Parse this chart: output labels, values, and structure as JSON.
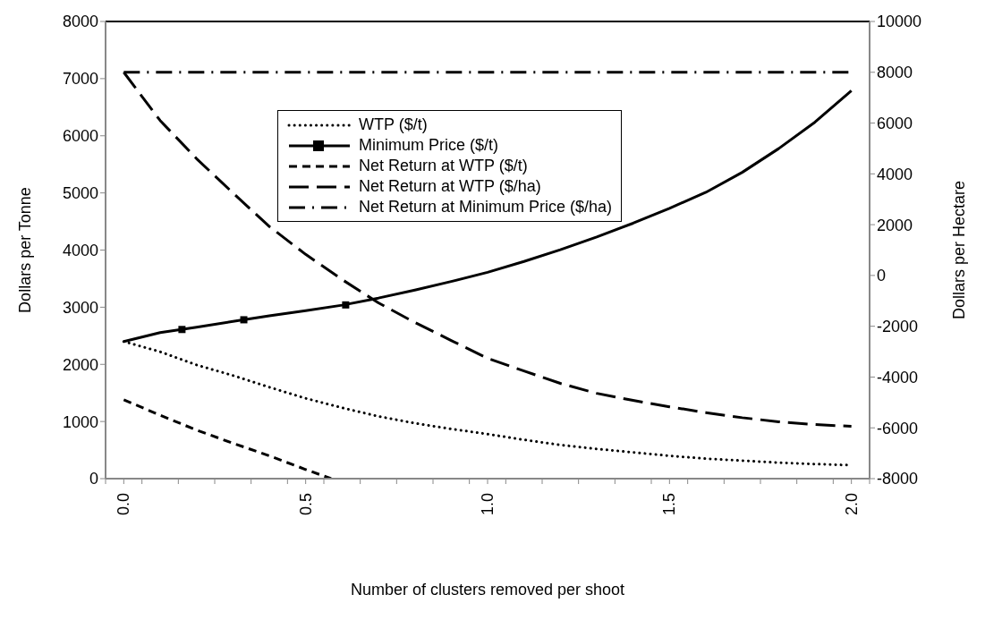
{
  "chart_data": {
    "type": "line",
    "xlabel": "Number of clusters removed per shoot",
    "ylabel": "Dollars per Tonne",
    "y2label": "Dollars per Hectare",
    "x": [
      0,
      0.1,
      0.2,
      0.3,
      0.4,
      0.5,
      0.6,
      0.7,
      0.8,
      0.9,
      1.0,
      1.1,
      1.2,
      1.3,
      1.4,
      1.5,
      1.6,
      1.7,
      1.8,
      1.9,
      2.0
    ],
    "xlim": [
      -0.05,
      2.05
    ],
    "xticks": [
      {
        "value": -0.05,
        "label": null
      },
      {
        "value": 0,
        "label": "0.0"
      },
      {
        "value": 0.05,
        "label": null
      },
      {
        "value": 0.15,
        "label": null
      },
      {
        "value": 0.25,
        "label": null
      },
      {
        "value": 0.35,
        "label": null
      },
      {
        "value": 0.45,
        "label": null
      },
      {
        "value": 0.5,
        "label": "0.5"
      },
      {
        "value": 0.55,
        "label": null
      },
      {
        "value": 0.65,
        "label": null
      },
      {
        "value": 0.75,
        "label": null
      },
      {
        "value": 0.85,
        "label": null
      },
      {
        "value": 0.95,
        "label": null
      },
      {
        "value": 1,
        "label": "1.0"
      },
      {
        "value": 1.05,
        "label": null
      },
      {
        "value": 1.15,
        "label": null
      },
      {
        "value": 1.25,
        "label": null
      },
      {
        "value": 1.35,
        "label": null
      },
      {
        "value": 1.45,
        "label": null
      },
      {
        "value": 1.5,
        "label": "1.5"
      },
      {
        "value": 1.55,
        "label": null
      },
      {
        "value": 1.65,
        "label": null
      },
      {
        "value": 1.75,
        "label": null
      },
      {
        "value": 1.85,
        "label": null
      },
      {
        "value": 1.95,
        "label": null
      },
      {
        "value": 2,
        "label": "2.0"
      },
      {
        "value": 2.05,
        "label": null
      }
    ],
    "ylim": [
      0,
      8000
    ],
    "yticks": [
      0,
      1000,
      2000,
      3000,
      4000,
      5000,
      6000,
      7000,
      8000
    ],
    "y2lim": [
      -8000,
      10000
    ],
    "y2ticks": [
      -8000,
      -6000,
      -4000,
      -2000,
      0,
      2000,
      4000,
      6000,
      8000,
      10000
    ],
    "grid": false,
    "legend": "top",
    "series": [
      {
        "name": "WTP ($/t)",
        "color": "#000000",
        "line_style": "dotted",
        "marker": "none",
        "values": [
          2400,
          2220,
          1990,
          1805,
          1600,
          1405,
          1240,
          1090,
          970,
          870,
          780,
          680,
          590,
          520,
          460,
          400,
          350,
          315,
          280,
          255,
          235
        ]
      },
      {
        "name": "Minimum Price ($/t)",
        "color": "#000000",
        "line_style": "solid",
        "marker": "none",
        "values": [
          2400,
          2555,
          2650,
          2750,
          2850,
          2940,
          3035,
          3160,
          3300,
          3450,
          3610,
          3800,
          4006,
          4230,
          4470,
          4730,
          5010,
          5360,
          5775,
          6240,
          6790
        ]
      },
      {
        "type": "scatter",
        "color": "#000000",
        "marker": "square",
        "x": [
          0.16,
          0.33,
          0.61
        ],
        "values": [
          2610,
          2780,
          3040
        ]
      },
      {
        "name": "Net Return at WTP ($/t)",
        "color": "#000000",
        "line_style": "dashed",
        "marker": "none",
        "x": [
          0,
          0.1,
          0.2,
          0.3,
          0.4,
          0.5,
          0.57
        ],
        "values": [
          1380,
          1110,
          850,
          620,
          400,
          160,
          0
        ]
      },
      {
        "name": "Net Return at WTP ($/ha)",
        "color": "#000000",
        "line_style": "longdash",
        "marker": "none",
        "axis": "y2",
        "values": [
          8000,
          6100,
          4600,
          3250,
          1930,
          830,
          -160,
          -1080,
          -1850,
          -2560,
          -3260,
          -3760,
          -4250,
          -4640,
          -4920,
          -5170,
          -5400,
          -5600,
          -5760,
          -5870,
          -5940
        ]
      },
      {
        "name": "Net Return at Minimum Price ($/ha)",
        "color": "#000000",
        "line_style": "dashdot",
        "marker": "none",
        "axis": "y2",
        "values": [
          8000,
          8000,
          8000,
          8000,
          8000,
          8000,
          8000,
          8000,
          8000,
          8000,
          8000,
          8000,
          8000,
          8000,
          8000,
          8000,
          8000,
          8000,
          8000,
          8000,
          8000
        ]
      }
    ]
  }
}
